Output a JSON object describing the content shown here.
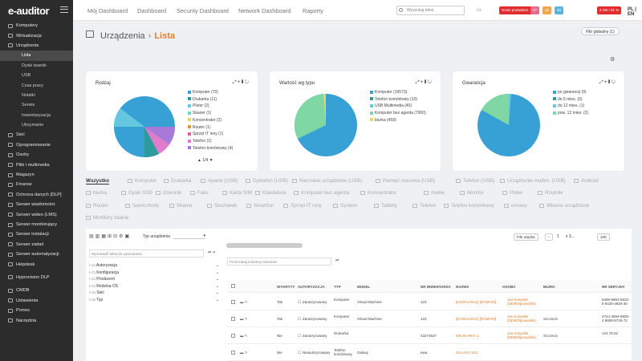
{
  "app": {
    "logo": "e-auditor",
    "lang": "PL | EN"
  },
  "sidebar": {
    "items": [
      {
        "label": "Komputery",
        "sub": false
      },
      {
        "label": "Wirtualizacja",
        "sub": false
      },
      {
        "label": "Urządzenia",
        "sub": false
      },
      {
        "label": "Lista",
        "sub": true,
        "active": true
      },
      {
        "label": "Dyski twarde",
        "sub": true
      },
      {
        "label": "USB",
        "sub": true
      },
      {
        "label": "Czas pracy",
        "sub": true
      },
      {
        "label": "Notatki",
        "sub": true
      },
      {
        "label": "Serwis",
        "sub": true
      },
      {
        "label": "Inwentaryzacja",
        "sub": true
      },
      {
        "label": "Utrzymanie",
        "sub": true
      },
      {
        "label": "Sieć",
        "sub": false
      },
      {
        "label": "Oprogramowanie",
        "sub": false
      },
      {
        "label": "Osoby",
        "sub": false
      },
      {
        "label": "Pliki i multimedia",
        "sub": false
      },
      {
        "label": "Magazyn",
        "sub": false
      },
      {
        "label": "Finanse",
        "sub": false
      },
      {
        "label": "Ochrona danych [DLP]",
        "sub": false
      },
      {
        "label": "Serwer wiadomości",
        "sub": false
      },
      {
        "label": "Serwer wideo (LMS)",
        "sub": false
      },
      {
        "label": "Serwer monitorujący",
        "sub": false
      },
      {
        "label": "Serwer instalacji",
        "sub": false
      },
      {
        "label": "Serwer zadań",
        "sub": false
      },
      {
        "label": "Serwer automatyzacji",
        "sub": false
      },
      {
        "label": "Helpdesk",
        "sub": false
      },
      {
        "label": "Hyprovision DLP",
        "sub": false
      },
      {
        "label": "CMDB",
        "sub": false
      },
      {
        "label": "Ustawienia",
        "sub": false
      },
      {
        "label": "Pomoc",
        "sub": false
      },
      {
        "label": "Narzędzia",
        "sub": false
      }
    ]
  },
  "topnav": {
    "items": [
      "Mój Dashboard",
      "Dashboard",
      "Security Dashboard",
      "Network Dashboard",
      "Raporty"
    ],
    "search_placeholder": "Wyszukaj tekst",
    "alert": "Nowe powiadom. 1",
    "badge1": "27",
    "badge2": "16",
    "badge3": "20",
    "status": "3 GB / 91 %"
  },
  "page": {
    "parent": "Urządzenia",
    "current": "Lista",
    "filter_button": "Filtr globalny (1)"
  },
  "cards": [
    {
      "title": "Rodzaj",
      "pager": "1/4",
      "legend": [
        {
          "label": "Komputer (70)",
          "color": "#37a0d5"
        },
        {
          "label": "Drukarka (11)",
          "color": "#2d9a9e"
        },
        {
          "label": "Ploter (2)",
          "color": "#65c8e0"
        },
        {
          "label": "Skaner (1)",
          "color": "#6fd3c3"
        },
        {
          "label": "Koncentrator (2)",
          "color": "#e8d76a"
        },
        {
          "label": "Router (1)",
          "color": "#d59a3b"
        },
        {
          "label": "Sprzęt IT inny (1)",
          "color": "#e0619c"
        },
        {
          "label": "Telefon (2)",
          "color": "#e07ccb"
        },
        {
          "label": "Telefon komórkowy (4)",
          "color": "#a77ad9"
        }
      ]
    },
    {
      "title": "Wartość wg typu",
      "legend": [
        {
          "label": "Komputer (16573)",
          "color": "#37a0d5"
        },
        {
          "label": "Telefon komórkowy (10)",
          "color": "#2d9a9e"
        },
        {
          "label": "USB Multimedia (40)",
          "color": "#65c8e0"
        },
        {
          "label": "Komputer bez agenta (7000)",
          "color": "#7fd7a4"
        },
        {
          "label": "biurka (459)",
          "color": "#e8d76a"
        }
      ]
    },
    {
      "title": "Gwarancja",
      "legend": [
        {
          "label": "po gwarancji (9)",
          "color": "#37a0d5"
        },
        {
          "label": "do 6 mies. (0)",
          "color": "#2d9a9e"
        },
        {
          "label": "do 12 mies. (1)",
          "color": "#65c8e0"
        },
        {
          "label": "pow. 12 mies. (2)",
          "color": "#7fd7a4"
        }
      ]
    }
  ],
  "tabs": [
    "Wszystko",
    "Komputer",
    "Drukarka",
    "Aparat (USB)",
    "Dyktafon (USB)",
    "Nieznane urządzenie (USB)",
    "Pamięć masowa (USB)",
    "Telefon (USB)",
    "Urządzenie multim. (USB)",
    "Android",
    "biurka",
    "Dyski SSD",
    "dziennik",
    "Faks",
    "Karta SIM",
    "Klawiatura",
    "Komputer bez agenta",
    "Koncentrator",
    "mebie",
    "Monitor",
    "Ploter",
    "Rzutniki",
    "Router",
    "Samochody",
    "Skaner",
    "Słuchawki",
    "Smartfon",
    "Sprzęt IT inny",
    "System",
    "Tablety",
    "Telefon",
    "Telefon komórkowy",
    "umowy",
    "Własne urządzenie",
    "Monitory zdalne"
  ],
  "table": {
    "device_type_label": "Typ urządzenia",
    "search_tree": "Wprowadź tekst do wyszukania",
    "search_columns": "Przeszukaj kolumny tekstowe",
    "filter_btn": "Filtr wiązka",
    "page_num": "1",
    "page_of": "z 3...",
    "page_size": "100",
    "tree": [
      "Autoryzacja",
      "Konfiguracja",
      "Producent",
      "Rodzina OS",
      "Sieć",
      "Typ"
    ],
    "headers": [
      "WYKRYTY",
      "AUTORYZACJA",
      "TYP",
      "MODEL",
      "NR INWENTARZA",
      "NAZWA",
      "OSOBA",
      "BIURO",
      "NR SERYJNY"
    ],
    "rows": [
      {
        "wykryty": "Tak",
        "aut": "Zautoryzowany",
        "typ": "Komputer",
        "model": "Virtual Machine",
        "inw": "123",
        "nazwa": "[KOWALSKI1] [DOMAIN]",
        "osoba": "Jan Kowalski (DEMO\\jkowalski)",
        "biuro": "",
        "serial": "9469-8852-5622-9 9425-4826-30"
      },
      {
        "wykryty": "Tak",
        "aut": "Zautoryzowany",
        "typ": "Komputer",
        "model": "Virtual Machine",
        "inw": "123",
        "nazwa": "[KOWALSKI1] [DOMAIN]",
        "osoba": "Jan Kowalski (DEMO\\jkowalski)",
        "biuro": "Szczecin",
        "serial": "4744-4594-8826-4 8908-8719-72"
      },
      {
        "wykryty": "Nie",
        "aut": "Zautoryzowany",
        "typ": "Drukarka",
        "model": "",
        "inw": "43274537",
        "nazwa": "DRUKARKA 1",
        "osoba": "Jan Kowalski (DEMO\\jkowalski)",
        "biuro": "Szczecin",
        "serial": "124.78.52"
      },
      {
        "wykryty": "Nie",
        "aut": "Nieautoryzowany",
        "typ": "Telefon komórkowy",
        "model": "Galaxy",
        "inw": "ewa",
        "nazwa": "GALAXY S22",
        "osoba": "",
        "biuro": "",
        "serial": ""
      }
    ]
  }
}
